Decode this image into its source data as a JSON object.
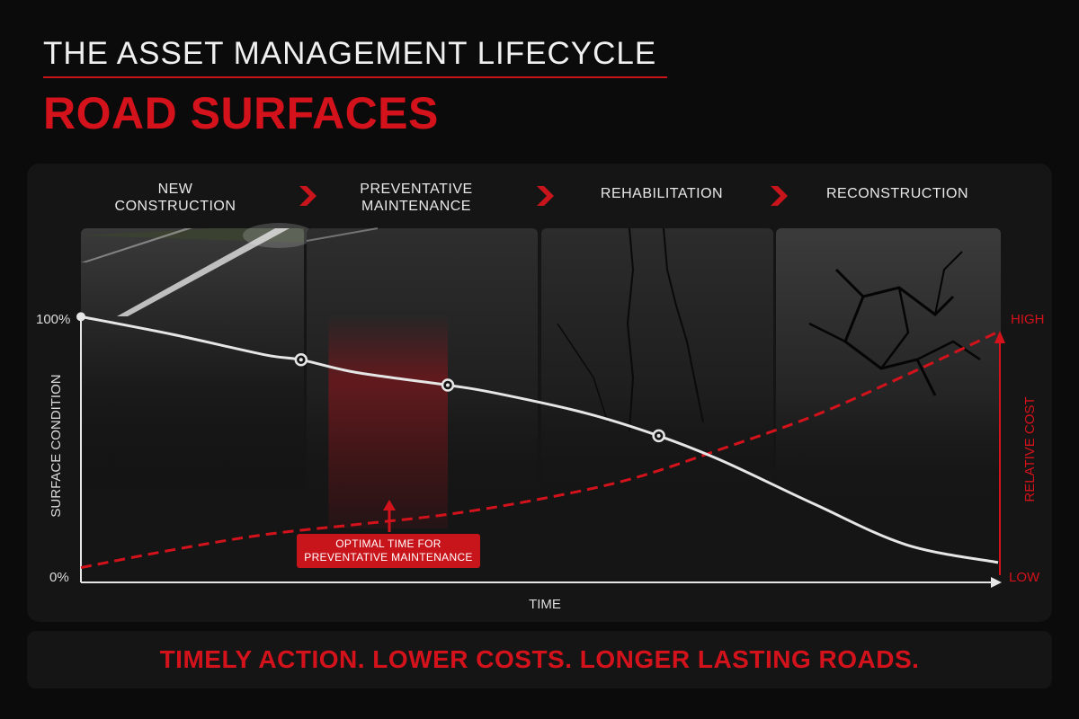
{
  "header": {
    "title": "THE ASSET MANAGEMENT LIFECYCLE",
    "subtitle": "ROAD SURFACES"
  },
  "stages": [
    {
      "line1": "NEW",
      "line2": "CONSTRUCTION"
    },
    {
      "line1": "PREVENTATIVE",
      "line2": "MAINTENANCE"
    },
    {
      "line1": "",
      "line2": "REHABILITATION"
    },
    {
      "line1": "",
      "line2": "RECONSTRUCTION"
    }
  ],
  "callout": {
    "line1": "OPTIMAL TIME FOR",
    "line2": "PREVENTATIVE MAINTENANCE"
  },
  "footer": {
    "tagline": "TIMELY ACTION. LOWER COSTS. LONGER LASTING ROADS."
  },
  "colors": {
    "accent": "#d4121b",
    "condition_line": "#e6e6e6",
    "background": "#0b0b0b"
  },
  "chart_data": {
    "type": "line",
    "xlabel": "TIME",
    "ylabel": "SURFACE CONDITION",
    "y2label": "RELATIVE COST",
    "xlim": [
      0,
      100
    ],
    "ylim": [
      0,
      100
    ],
    "y_ticks": [
      "0%",
      "100%"
    ],
    "y2_ticks": [
      "LOW",
      "HIGH"
    ],
    "grid": false,
    "series": [
      {
        "name": "SURFACE CONDITION",
        "x": [
          0,
          10,
          20,
          24,
          30,
          40,
          45,
          55,
          63,
          70,
          80,
          90,
          100
        ],
        "y": [
          102,
          95,
          87,
          85,
          80,
          75,
          72,
          64,
          55,
          45,
          28,
          12,
          5
        ]
      },
      {
        "name": "RELATIVE COST",
        "x": [
          0,
          10,
          20,
          30,
          40,
          50,
          60,
          70,
          80,
          90,
          100
        ],
        "y": [
          3,
          10,
          16,
          20,
          24,
          30,
          38,
          50,
          63,
          79,
          96
        ]
      }
    ],
    "markers": [
      {
        "x": 24,
        "y": 85
      },
      {
        "x": 40,
        "y": 75
      },
      {
        "x": 63,
        "y": 55
      }
    ],
    "highlight_range": [
      27,
      40
    ]
  }
}
